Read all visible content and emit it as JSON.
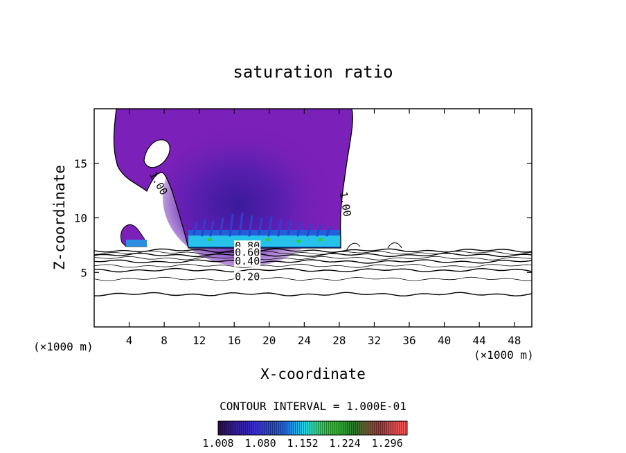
{
  "chart_data": {
    "type": "heatmap",
    "title": "saturation ratio",
    "xlabel": "X-coordinate",
    "ylabel": "Z-coordinate",
    "x_unit_left": "(×1000 m)",
    "x_unit_right": "(×1000 m)",
    "xlim": [
      0,
      50
    ],
    "ylim": [
      0,
      20
    ],
    "x_ticks": [
      4,
      8,
      12,
      16,
      20,
      24,
      28,
      32,
      36,
      40,
      44,
      48
    ],
    "y_ticks": [
      5,
      10,
      15
    ],
    "contour_interval_text": "CONTOUR INTERVAL = 1.000E-01",
    "colorbar": {
      "range": [
        1.008,
        1.33
      ],
      "tick_labels": [
        "1.008",
        "1.080",
        "1.152",
        "1.224",
        "1.296"
      ]
    },
    "contour_labels": [
      {
        "text": "1.00",
        "x": 7.0,
        "z": 13.0,
        "rotate": 60
      },
      {
        "text": "1.00",
        "x": 28.3,
        "z": 11.2,
        "rotate": 80
      },
      {
        "text": "0.80",
        "x": 17.5,
        "z": 7.1
      },
      {
        "text": "0.60",
        "x": 17.5,
        "z": 6.5
      },
      {
        "text": "0.40",
        "x": 17.5,
        "z": 5.7
      },
      {
        "text": "0.20",
        "x": 17.5,
        "z": 4.3
      }
    ],
    "contour_lines_z": [
      7.0,
      6.8,
      6.6,
      6.3,
      6.0,
      5.6,
      5.2,
      4.4,
      3.0
    ],
    "supersaturated_region": {
      "x": [
        0.3,
        29.0
      ],
      "z": [
        7.3,
        20.0
      ],
      "fill_color": "#7b20b8"
    },
    "colors": {
      "low": "#2a0d5e",
      "mid_blue": "#1f62d8",
      "cyan": "#29d3ec",
      "green": "#2fcc37",
      "high": "#ff4646"
    }
  }
}
